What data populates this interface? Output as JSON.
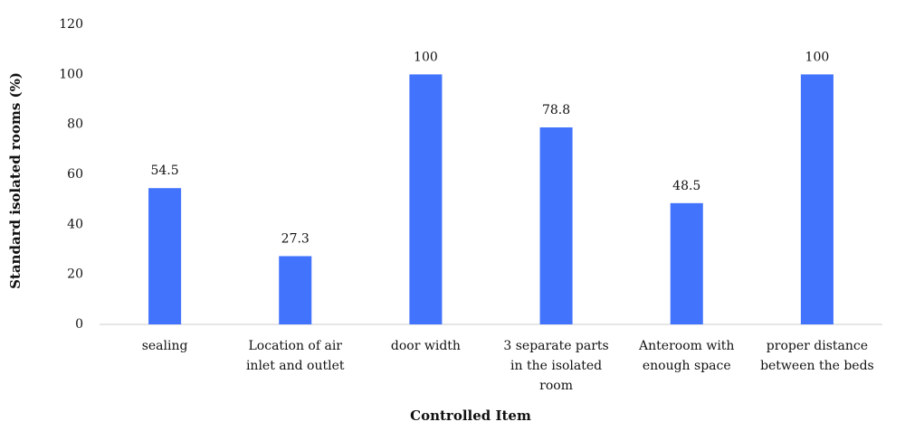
{
  "chart_data": {
    "type": "bar",
    "x_label": "Controlled Item",
    "y_label": "Standard isolated rooms (%)",
    "categories": [
      "sealing",
      "Location of air inlet and outlet",
      "door width",
      "3 separate parts in the isolated room",
      "Anteroom with enough space",
      "proper distance between the beds"
    ],
    "values": [
      54.5,
      27.3,
      100,
      78.8,
      48.5,
      100
    ],
    "color": "#4273fd",
    "ylim": [
      0,
      120
    ],
    "yticks": [
      0,
      20,
      40,
      60,
      80,
      100,
      120
    ],
    "grid": false
  }
}
